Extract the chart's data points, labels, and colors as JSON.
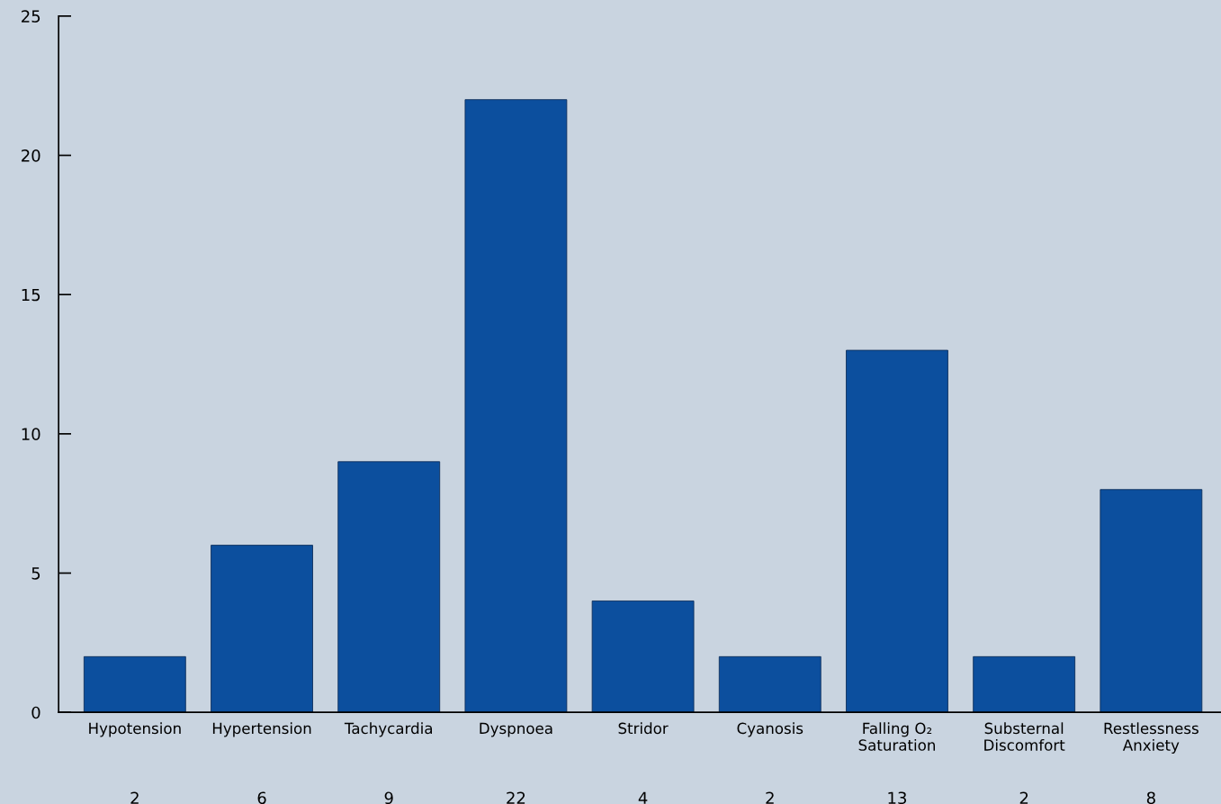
{
  "chart_data": {
    "type": "bar",
    "categories": [
      "Hypotension",
      "Hypertension",
      "Tachycardia",
      "Dyspnoea",
      "Stridor",
      "Cyanosis",
      "Falling O₂\nSaturation",
      "Substernal\nDiscomfort",
      "Restlessness\nAnxiety"
    ],
    "values": [
      2,
      6,
      9,
      22,
      4,
      2,
      13,
      2,
      8
    ],
    "color": "#0c4f9e",
    "ylim": [
      0,
      25
    ],
    "yticks": [
      0,
      5,
      10,
      15,
      20,
      25
    ],
    "data_labels": true,
    "grid": false,
    "legend": false
  }
}
